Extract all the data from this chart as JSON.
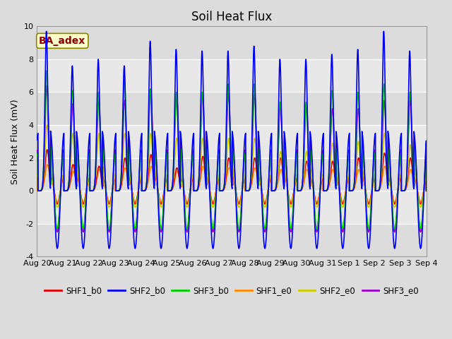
{
  "title": "Soil Heat Flux",
  "ylabel": "Soil Heat Flux (mV)",
  "ylim": [
    -4,
    10
  ],
  "yticks": [
    -4,
    -2,
    0,
    2,
    4,
    6,
    8,
    10
  ],
  "x_tick_labels": [
    "Aug 20",
    "Aug 21",
    "Aug 22",
    "Aug 23",
    "Aug 24",
    "Aug 25",
    "Aug 26",
    "Aug 27",
    "Aug 28",
    "Aug 29",
    "Aug 30",
    "Aug 31",
    "Sep 1",
    "Sep 2",
    "Sep 3",
    "Sep 4"
  ],
  "annotation_text": "BA_adex",
  "annotation_color": "#8B0000",
  "annotation_bg": "#FFFFCC",
  "series_colors": {
    "SHF1_b0": "#DD0000",
    "SHF2_b0": "#0000EE",
    "SHF3_b0": "#00CC00",
    "SHF1_e0": "#FF8800",
    "SHF2_e0": "#CCCC00",
    "SHF3_e0": "#9900CC"
  },
  "legend_colors": [
    "#DD0000",
    "#0000EE",
    "#00CC00",
    "#FF8800",
    "#CCCC00",
    "#9900CC"
  ],
  "legend_labels": [
    "SHF1_b0",
    "SHF2_b0",
    "SHF3_b0",
    "SHF1_e0",
    "SHF2_e0",
    "SHF3_e0"
  ],
  "bg_color": "#DCDCDC",
  "band_color": "#C8C8C8",
  "white_band": "#E8E8E8",
  "title_fontsize": 12,
  "label_fontsize": 9,
  "tick_fontsize": 8,
  "lw": 1.2
}
